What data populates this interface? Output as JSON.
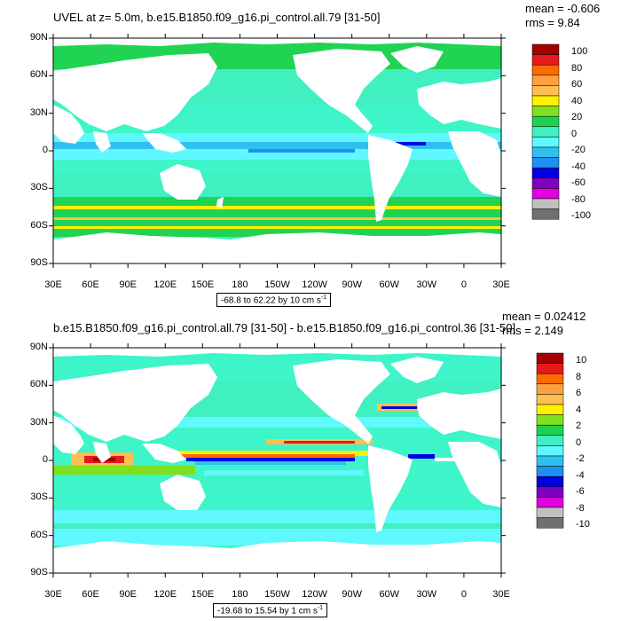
{
  "panels": [
    {
      "title": "UVEL at z=   5.0m, b.e15.B1850.f09_g16.pi_control.all.79 [31-50]",
      "mean": "mean = -0.606",
      "rms": "rms = 9.84",
      "range": "-68.8 to 62.22 by 10 cm s",
      "range_exp": "-1",
      "colorbar_labels": [
        "100",
        "80",
        "60",
        "40",
        "20",
        "0",
        "-20",
        "-40",
        "-60",
        "-80",
        "-100"
      ]
    },
    {
      "title": "b.e15.B1850.f09_g16.pi_control.all.79 [31-50] - b.e15.B1850.f09_g16.pi_control.36 [31-50]",
      "mean": "mean = 0.02412",
      "rms": "rms = 2.149",
      "range": "-19.68 to 15.54 by 1 cm s",
      "range_exp": "-1",
      "colorbar_labels": [
        "10",
        "8",
        "6",
        "4",
        "2",
        "0",
        "-2",
        "-4",
        "-6",
        "-8",
        "-10"
      ]
    }
  ],
  "lat_labels": [
    "90N",
    "60N",
    "30N",
    "0",
    "30S",
    "60S",
    "90S"
  ],
  "lon_labels": [
    "30E",
    "60E",
    "90E",
    "120E",
    "150E",
    "180",
    "150W",
    "120W",
    "90W",
    "60W",
    "30W",
    "0",
    "30E"
  ],
  "colors": {
    "palette": [
      "#a50000",
      "#e41a1c",
      "#ff6a00",
      "#ffa040",
      "#ffbf50",
      "#fff000",
      "#80e020",
      "#20d050",
      "#40f0c0",
      "#60f8ff",
      "#30c0f0",
      "#2090f0",
      "#0000e0",
      "#8000c0",
      "#e000e0",
      "#c0c0c0",
      "#707070"
    ],
    "ocean_base_top": "#3df5c8",
    "ocean_base_bottom": "#3df0d0",
    "land": "#ffffff"
  }
}
